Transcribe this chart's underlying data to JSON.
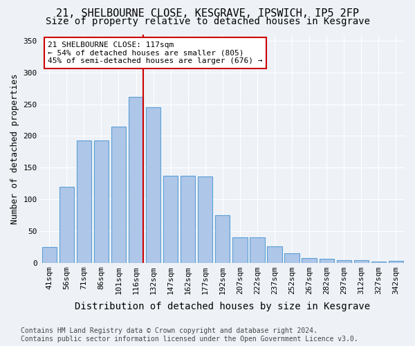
{
  "title_line1": "21, SHELBOURNE CLOSE, KESGRAVE, IPSWICH, IP5 2FP",
  "title_line2": "Size of property relative to detached houses in Kesgrave",
  "xlabel": "Distribution of detached houses by size in Kesgrave",
  "ylabel": "Number of detached properties",
  "categories": [
    "41sqm",
    "56sqm",
    "71sqm",
    "86sqm",
    "101sqm",
    "116sqm",
    "132sqm",
    "147sqm",
    "162sqm",
    "177sqm",
    "192sqm",
    "207sqm",
    "222sqm",
    "237sqm",
    "252sqm",
    "267sqm",
    "282sqm",
    "297sqm",
    "312sqm",
    "327sqm",
    "342sqm"
  ],
  "values": [
    25,
    120,
    193,
    193,
    215,
    262,
    245,
    137,
    137,
    136,
    75,
    40,
    40,
    26,
    15,
    7,
    6,
    4,
    4,
    2,
    3
  ],
  "bar_color": "#aec6e8",
  "bar_edge_color": "#5a9fd4",
  "background_color": "#eef2f7",
  "vline_x": 5.42,
  "vline_color": "#cc0000",
  "annotation_text": "21 SHELBOURNE CLOSE: 117sqm\n← 54% of detached houses are smaller (805)\n45% of semi-detached houses are larger (676) →",
  "annotation_box_facecolor": "#ffffff",
  "annotation_border_color": "#cc0000",
  "footnote": "Contains HM Land Registry data © Crown copyright and database right 2024.\nContains public sector information licensed under the Open Government Licence v3.0.",
  "ylim": [
    0,
    360
  ],
  "yticks": [
    0,
    50,
    100,
    150,
    200,
    250,
    300,
    350
  ],
  "title_fontsize": 11,
  "subtitle_fontsize": 10,
  "axis_label_fontsize": 9,
  "tick_fontsize": 8,
  "annotation_fontsize": 8,
  "footnote_fontsize": 7
}
